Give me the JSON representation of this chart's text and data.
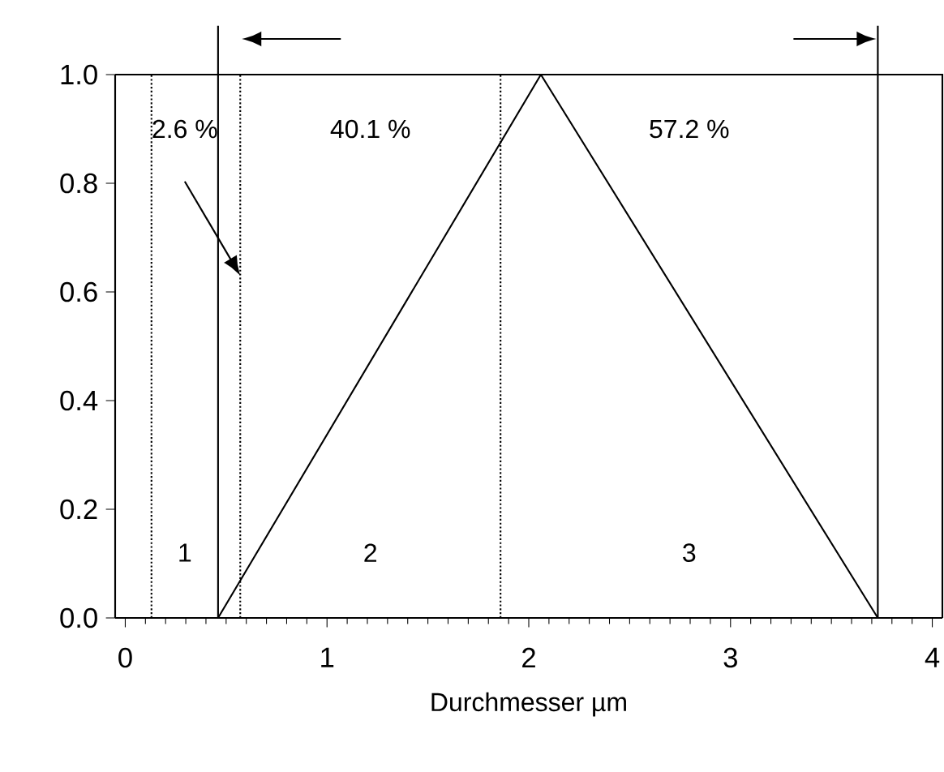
{
  "chart_data": {
    "type": "line",
    "xlabel": "Durchmesser µm",
    "xlim": [
      -0.05,
      4.05
    ],
    "ylim": [
      0,
      1
    ],
    "xticks": [
      0,
      1,
      2,
      3,
      4
    ],
    "yticks": [
      {
        "value": 0,
        "label": "0.0"
      },
      {
        "value": 0.2,
        "label": "0.2"
      },
      {
        "value": 0.4,
        "label": "0.4"
      },
      {
        "value": 0.6,
        "label": "0.6"
      },
      {
        "value": 0.8,
        "label": "0.8"
      },
      {
        "value": 1,
        "label": "1.0"
      }
    ],
    "series": [
      {
        "color": "#000000",
        "x": [
          0.46,
          2.06,
          3.73
        ],
        "values": [
          0,
          1,
          0
        ]
      }
    ],
    "ref_lines": [
      {
        "axis": "x",
        "value": 0.13,
        "line_style": "dotted"
      },
      {
        "axis": "x",
        "value": 0.46,
        "line_style": "solid"
      },
      {
        "axis": "x",
        "value": 0.57,
        "line_style": "dotted"
      },
      {
        "axis": "x",
        "value": 1.86,
        "line_style": "dotted"
      },
      {
        "axis": "x",
        "value": 3.73,
        "line_style": "solid"
      }
    ],
    "annotations": [
      "2.6 %",
      "40.1 %",
      "57.2 %",
      "1",
      "2",
      "3"
    ],
    "grid": false,
    "marker": "none",
    "line_style": "solid"
  }
}
